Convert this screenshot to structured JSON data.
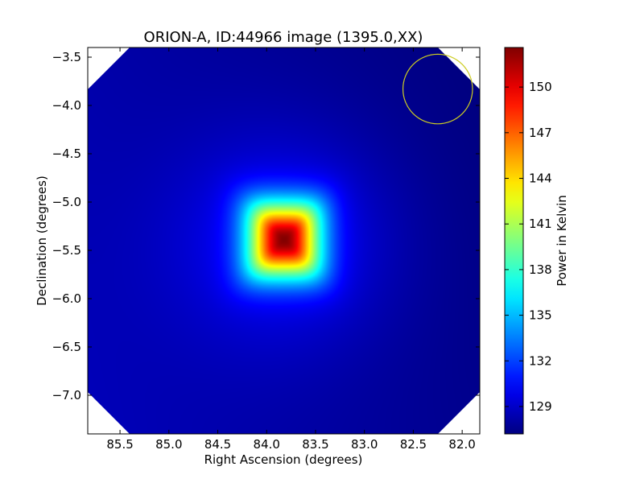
{
  "chart_data": {
    "type": "heatmap",
    "title": "ORION-A, ID:44966 image (1395.0,XX)",
    "xlabel": "Right Ascension (degrees)",
    "ylabel": "Declination (degrees)",
    "xlim": [
      85.83,
      81.82
    ],
    "ylim": [
      -7.4,
      -3.4
    ],
    "x_ticks": [
      85.5,
      85.0,
      84.5,
      84.0,
      83.5,
      83.0,
      82.5,
      82.0
    ],
    "x_tick_labels": [
      "85.5",
      "85.0",
      "84.5",
      "84.0",
      "83.5",
      "83.0",
      "82.5",
      "82.0"
    ],
    "y_ticks": [
      -3.5,
      -4.0,
      -4.5,
      -5.0,
      -5.5,
      -6.0,
      -6.5,
      -7.0
    ],
    "y_tick_labels": [
      "−3.5",
      "−4.0",
      "−4.5",
      "−5.0",
      "−5.5",
      "−6.0",
      "−6.5",
      "−7.0"
    ],
    "grid": false,
    "colormap": "jet",
    "colorbar": {
      "label": "Power in Kelvin",
      "range": [
        127.2,
        152.6
      ],
      "ticks": [
        129,
        132,
        135,
        138,
        141,
        144,
        147,
        150
      ],
      "tick_labels": [
        "129",
        "132",
        "135",
        "138",
        "141",
        "144",
        "147",
        "150"
      ]
    },
    "source": {
      "ra": 83.82,
      "dec": -5.39,
      "peak": 152.2,
      "background": 127.6
    },
    "beam_circle": {
      "ra": 82.25,
      "dec": -3.83,
      "radius_deg": 0.36,
      "color": "#cccc22"
    },
    "edge_mask": "corners clipped (octagonal footprint)"
  }
}
